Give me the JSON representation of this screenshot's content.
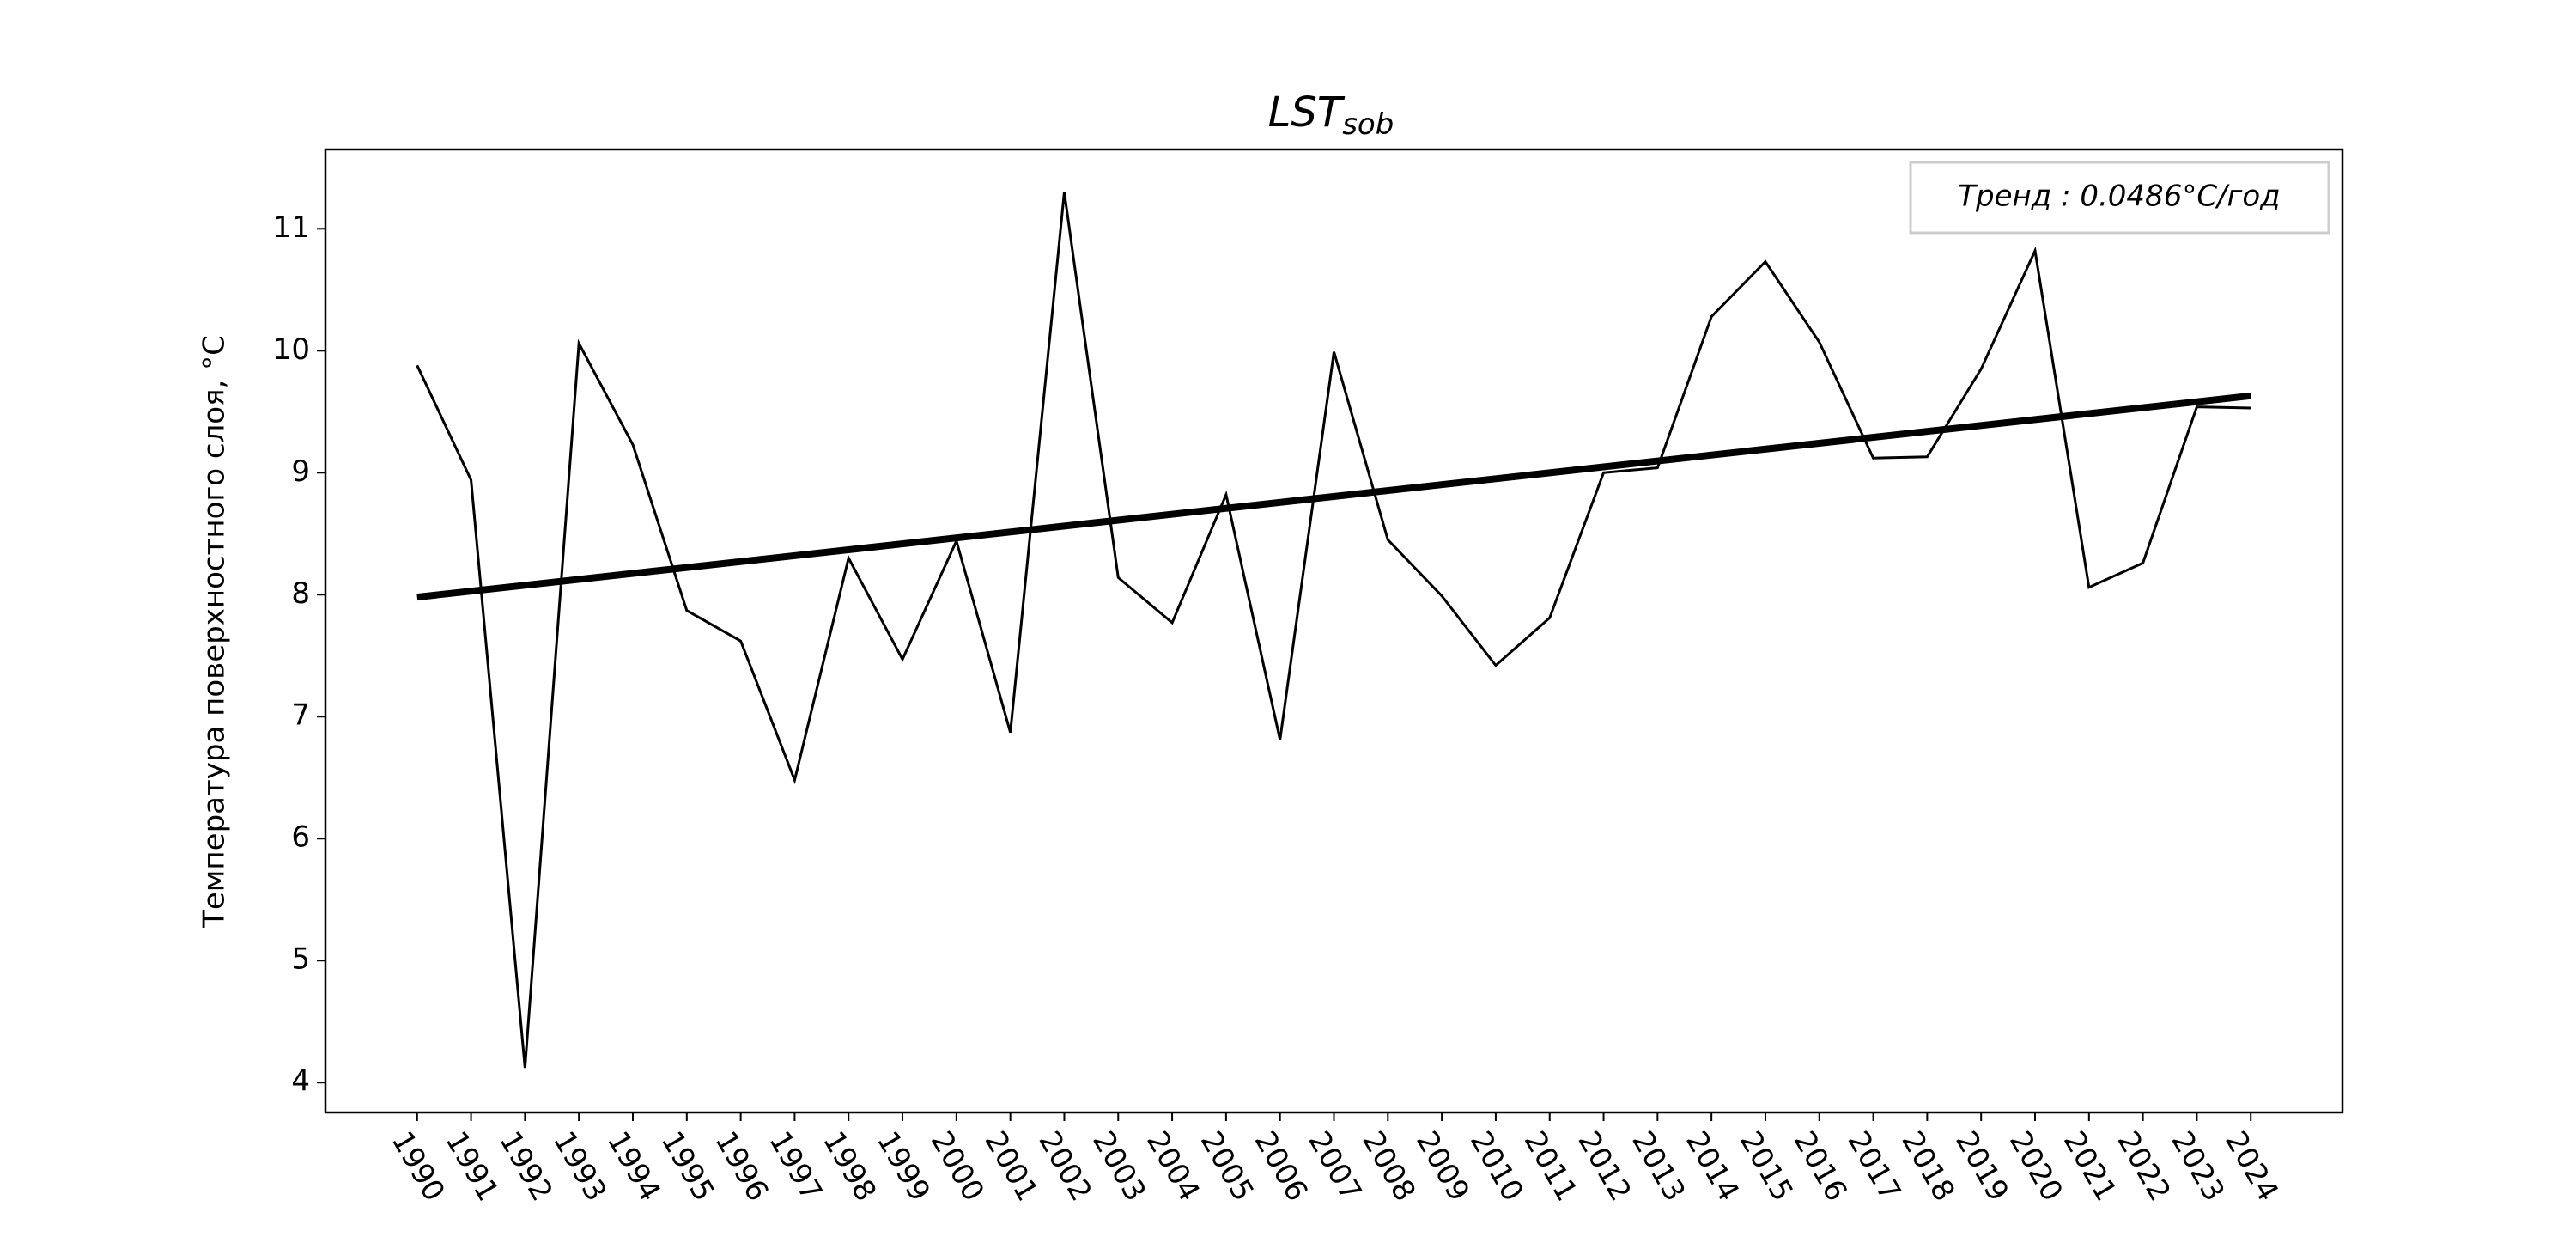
{
  "chart_data": {
    "type": "line",
    "title": "LST",
    "title_subscript": "sob",
    "ylabel": "Температура поверхностного слоя, °C",
    "legend_label": "Тренд : 0.0486°C/год",
    "legend_position": "upper right",
    "x": [
      1990,
      1991,
      1992,
      1993,
      1994,
      1995,
      1996,
      1997,
      1998,
      1999,
      2000,
      2001,
      2002,
      2003,
      2004,
      2005,
      2006,
      2007,
      2008,
      2009,
      2010,
      2011,
      2012,
      2013,
      2014,
      2015,
      2016,
      2017,
      2018,
      2019,
      2020,
      2021,
      2022,
      2023,
      2024
    ],
    "series": [
      {
        "color": "#000000",
        "values": [
          9.88,
          8.94,
          4.12,
          10.06,
          9.23,
          7.87,
          7.62,
          6.48,
          8.3,
          7.47,
          8.44,
          6.87,
          11.3,
          8.14,
          7.77,
          8.82,
          6.81,
          9.99,
          8.45,
          7.99,
          7.42,
          7.81,
          9.0,
          9.04,
          10.28,
          10.73,
          10.07,
          9.12,
          9.13,
          9.85,
          10.82,
          8.06,
          8.26,
          9.54,
          9.53
        ]
      },
      {
        "color": "#000000",
        "x": [
          1990,
          2024
        ],
        "values": [
          7.98,
          9.63
        ]
      }
    ],
    "xlim": [
      1988.3,
      2025.7
    ],
    "ylim": [
      3.755,
      11.65
    ],
    "yticks": [
      4,
      5,
      6,
      7,
      8,
      9,
      10,
      11
    ],
    "grid": false
  }
}
